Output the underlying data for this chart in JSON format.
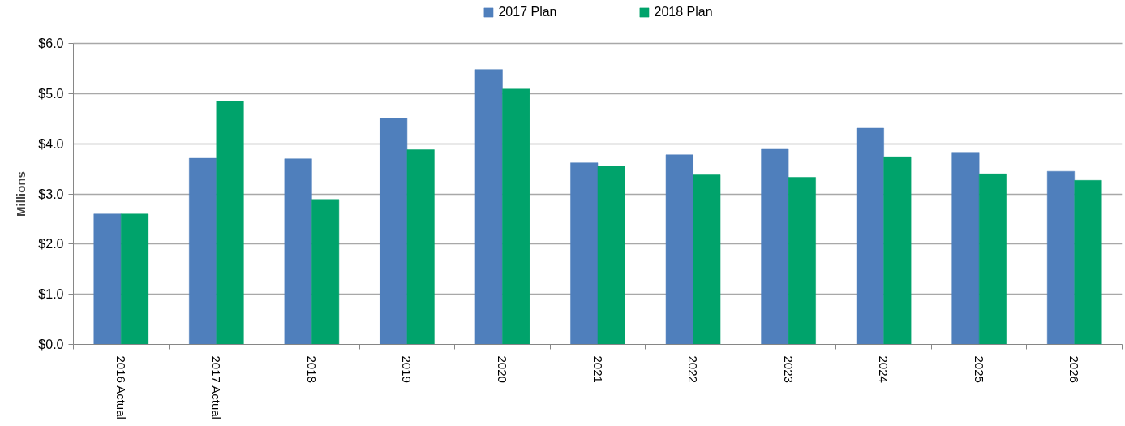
{
  "chart_data": {
    "type": "bar",
    "categories": [
      "2016 Actual",
      "2017 Actual",
      "2018",
      "2019",
      "2020",
      "2021",
      "2022",
      "2023",
      "2024",
      "2025",
      "2026"
    ],
    "series": [
      {
        "name": "2017 Plan",
        "color": "#4f7fbc",
        "values": [
          2.6,
          3.71,
          3.7,
          4.51,
          5.48,
          3.62,
          3.78,
          3.89,
          4.31,
          3.83,
          3.45
        ]
      },
      {
        "name": "2018 Plan",
        "color": "#00a36b",
        "values": [
          2.6,
          4.85,
          2.89,
          3.88,
          5.09,
          3.55,
          3.38,
          3.33,
          3.74,
          3.4,
          3.27
        ]
      }
    ],
    "ylabel": "Millions",
    "ylim": [
      0,
      6
    ],
    "yticks": [
      {
        "value": 0,
        "label": "$0.0"
      },
      {
        "value": 1,
        "label": "$1.0"
      },
      {
        "value": 2,
        "label": "$2.0"
      },
      {
        "value": 3,
        "label": "$3.0"
      },
      {
        "value": 4,
        "label": "$4.0"
      },
      {
        "value": 5,
        "label": "$5.0"
      },
      {
        "value": 6,
        "label": "$6.0"
      }
    ],
    "grid": "y",
    "legend": "top"
  }
}
